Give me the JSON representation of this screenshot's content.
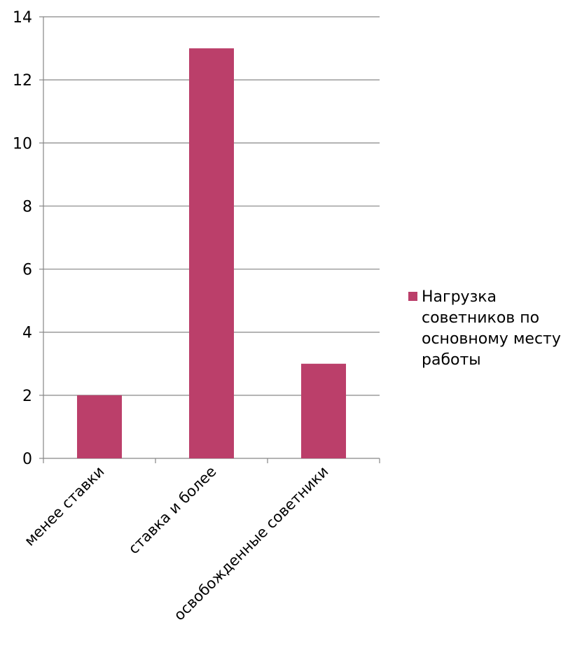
{
  "chart_data": {
    "type": "bar",
    "title": "",
    "xlabel": "",
    "ylabel": "",
    "categories": [
      "менее ставки",
      "ставка и более",
      "освобожденные советники"
    ],
    "series": [
      {
        "name": "Нагрузка советников по основному месту работы",
        "values": [
          2,
          13,
          3
        ],
        "color": "#BB3F6A"
      }
    ],
    "ylim": [
      0,
      14
    ],
    "yticks": [
      0,
      2,
      4,
      6,
      8,
      10,
      12,
      14
    ],
    "grid": "horizontal",
    "legend_position": "right",
    "legend_lines": [
      "Нагрузка",
      "советников по",
      "основному месту",
      "работы"
    ]
  }
}
